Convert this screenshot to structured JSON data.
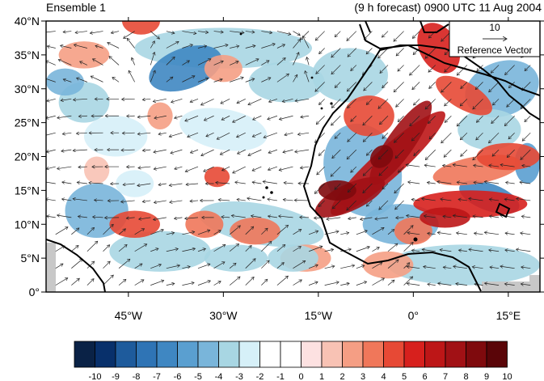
{
  "header": {
    "left_title": "Ensemble 1",
    "right_title": "(9 h forecast) 0900 UTC 11 Aug 2004"
  },
  "map": {
    "lat_range": [
      0,
      40
    ],
    "lon_range": [
      -58,
      20
    ],
    "lat_ticks": [
      {
        "value": 40,
        "label": "40°N"
      },
      {
        "value": 35,
        "label": "35°N"
      },
      {
        "value": 30,
        "label": "30°N"
      },
      {
        "value": 25,
        "label": "25°N"
      },
      {
        "value": 20,
        "label": "20°N"
      },
      {
        "value": 15,
        "label": "15°N"
      },
      {
        "value": 10,
        "label": "10°N"
      },
      {
        "value": 5,
        "label": "5°N"
      },
      {
        "value": 0,
        "label": "0°"
      }
    ],
    "lon_ticks": [
      {
        "value": -45,
        "label": "45°W"
      },
      {
        "value": -30,
        "label": "30°W"
      },
      {
        "value": -15,
        "label": "15°W"
      },
      {
        "value": 0,
        "label": "0°"
      },
      {
        "value": 15,
        "label": "15°E"
      }
    ],
    "features": [
      {
        "name": "African jet-streak band (positive)",
        "lon": -4,
        "lat": 19,
        "value": 9
      },
      {
        "name": "Sahel band (positive)",
        "lon": 8,
        "lat": 11,
        "value": 7
      },
      {
        "name": "North Africa maximum",
        "lon": 4,
        "lat": 36,
        "value": 6
      },
      {
        "name": "Atlantic negative region",
        "lon": -38,
        "lat": 33,
        "value": -6
      },
      {
        "name": "Central Africa negative",
        "lon": 10,
        "lat": 14,
        "value": -6
      }
    ]
  },
  "reference_vector": {
    "value_label": "10",
    "caption": "Reference Vector"
  },
  "colorbar": {
    "levels": [
      "-10",
      "-9",
      "-8",
      "-7",
      "-6",
      "-5",
      "-4",
      "-3",
      "-2",
      "-1",
      "0",
      "1",
      "2",
      "3",
      "4",
      "5",
      "6",
      "7",
      "8",
      "9",
      "10"
    ],
    "colors": [
      "#0a2246",
      "#08306b",
      "#1e5b9c",
      "#2f74b5",
      "#3f87c2",
      "#5a9fd0",
      "#79b5da",
      "#a8d6e3",
      "#d6f0f8",
      "#ffffff",
      "#ffffff",
      "#fde1e1",
      "#f8c2b4",
      "#f59e84",
      "#f0775a",
      "#e74935",
      "#d7201d",
      "#bd1617",
      "#a11115",
      "#7f0a0d",
      "#5a0508"
    ]
  }
}
